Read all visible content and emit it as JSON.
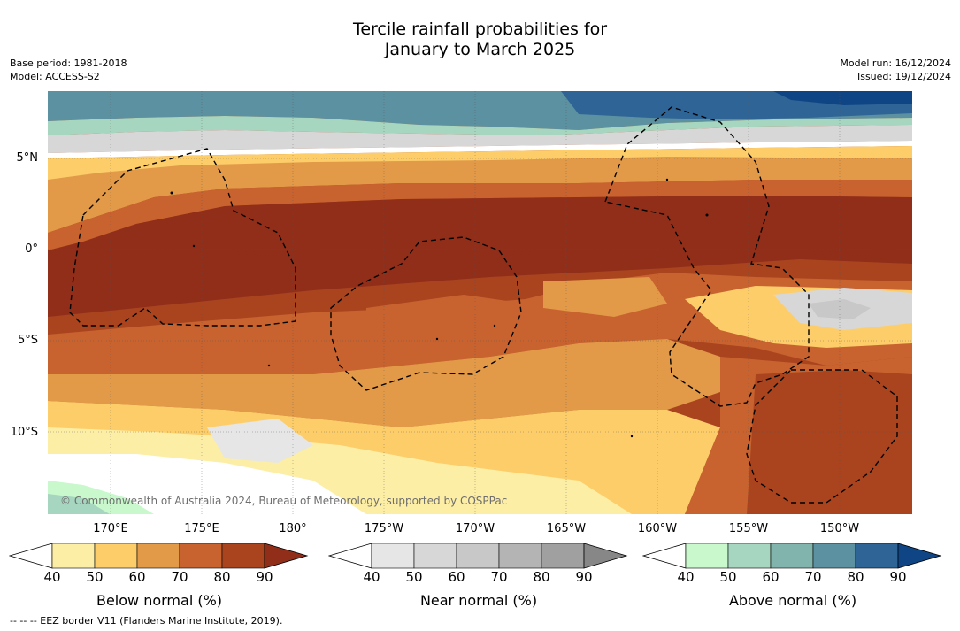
{
  "header": {
    "title_line1": "Tercile rainfall probabilities for",
    "title_line2": "January to March 2025",
    "base_period": "Base period: 1981-2018",
    "model": "Model: ACCESS-S2",
    "model_run": "Model run: 16/12/2024",
    "issued": "Issued: 19/12/2024"
  },
  "map": {
    "copyright": "© Commonwealth of Australia 2024, Bureau of Meteorology, supported by COSPPac",
    "lat_labels": [
      "5°N",
      "0°",
      "5°S",
      "10°S"
    ],
    "lon_labels": [
      "170°E",
      "175°E",
      "180°",
      "175°W",
      "170°W",
      "165°W",
      "160°W",
      "155°W",
      "150°W"
    ]
  },
  "legend": {
    "below": {
      "title": "Below normal (%)",
      "ticks": [
        "40",
        "50",
        "60",
        "70",
        "80",
        "90"
      ],
      "colors": [
        "#ffffff",
        "#fdeea6",
        "#fdcd6a",
        "#e29a48",
        "#c8632f",
        "#a9441f",
        "#902e1a"
      ]
    },
    "near": {
      "title": "Near normal (%)",
      "ticks": [
        "40",
        "50",
        "60",
        "70",
        "80",
        "90"
      ],
      "colors": [
        "#ffffff",
        "#e6e6e6",
        "#d7d7d7",
        "#c8c8c8",
        "#b4b4b4",
        "#a0a0a0",
        "#878787"
      ]
    },
    "above": {
      "title": "Above normal (%)",
      "ticks": [
        "40",
        "50",
        "60",
        "70",
        "80",
        "90"
      ],
      "colors": [
        "#ffffff",
        "#c8f8cc",
        "#a6d6bf",
        "#80b4ad",
        "#5b91a1",
        "#2f6496",
        "#0f4585"
      ]
    }
  },
  "footer": {
    "eez_note": "--  --  -- EEZ border V11 (Flanders Marine Institute, 2019)."
  }
}
